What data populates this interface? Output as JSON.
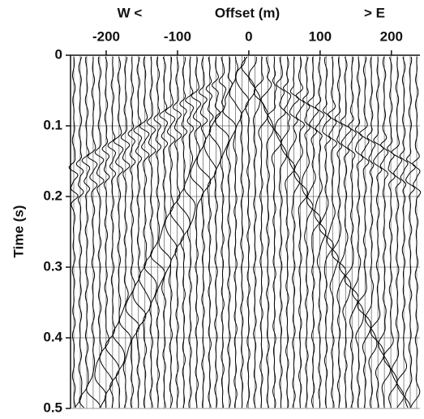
{
  "chart_data": {
    "type": "seismic",
    "header_left": "W <",
    "x_label": "Offset (m)",
    "header_right": "> E",
    "y_label": "Time (s)",
    "xlim": [
      -250,
      240
    ],
    "xticks": [
      -200,
      -100,
      0,
      100,
      200
    ],
    "ylim": [
      0,
      0.5
    ],
    "yticks": [
      0,
      0.1,
      0.2,
      0.3,
      0.4,
      0.5
    ],
    "y_inverted": true,
    "grid": true
  }
}
